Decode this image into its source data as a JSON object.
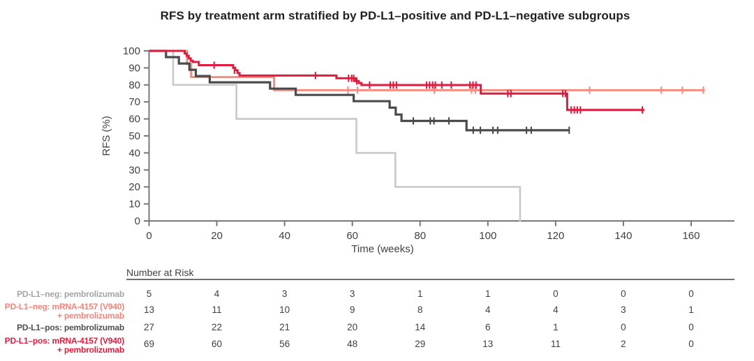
{
  "title": "RFS by treatment arm stratified by PD-L1–positive and PD-L1–negative subgroups",
  "colors": {
    "axis": "#77787B",
    "tick_text": "#414042",
    "title_text": "#231F20",
    "rule": "#6D6E71"
  },
  "chart_data": {
    "type": "line",
    "subtype": "kaplan-meier-step",
    "title": "RFS by treatment arm stratified by PD-L1–positive and PD-L1–negative subgroups",
    "xlabel": "Time (weeks)",
    "ylabel": "RFS (%)",
    "xlim": [
      0,
      160
    ],
    "ylim": [
      0,
      100
    ],
    "xticks": [
      0,
      20,
      40,
      60,
      80,
      100,
      120,
      140,
      160
    ],
    "yticks": [
      0,
      10,
      20,
      30,
      40,
      50,
      60,
      70,
      80,
      90,
      100
    ],
    "grid": false,
    "legend_position": "none",
    "series": [
      {
        "key": "pdl1-neg-pembrolizumab",
        "name": "PD-L1–neg: pembrolizumab",
        "label_lines": [
          "PD-L1–neg: pembrolizumab"
        ],
        "color": "#C8C9CB",
        "label_color": "#A2A4A7",
        "line_width": 2.6,
        "steps": [
          [
            0,
            100
          ],
          [
            7.1,
            80
          ],
          [
            25.8,
            60
          ],
          [
            61.2,
            40
          ],
          [
            72.7,
            20
          ],
          [
            109.5,
            0
          ]
        ],
        "censors": [],
        "end": 109.7,
        "at_risk": [
          5,
          4,
          3,
          3,
          1,
          1,
          0,
          0,
          0
        ]
      },
      {
        "key": "pdl1-neg-mrna4157-pembrolizumab",
        "name": "PD-L1–neg: mRNA-4157 (V940) + pembrolizumab",
        "label_lines": [
          "PD-L1–neg: mRNA-4157 (V940)",
          "+ pembrolizumab"
        ],
        "color": "#F58D7F",
        "label_color": "#F4837A",
        "line_width": 3,
        "steps": [
          [
            0,
            100
          ],
          [
            11.2,
            92.3
          ],
          [
            12.4,
            84.6
          ],
          [
            36.9,
            76.9
          ]
        ],
        "censors": [
          [
            58.7,
            76.9
          ],
          [
            61.5,
            76.9
          ],
          [
            84.2,
            76.9
          ],
          [
            95.2,
            76.9
          ],
          [
            96.3,
            76.9
          ],
          [
            130,
            76.9
          ],
          [
            151.2,
            76.9
          ],
          [
            157.4,
            76.9
          ],
          [
            163.6,
            76.9
          ]
        ],
        "end": 164,
        "at_risk": [
          13,
          11,
          10,
          9,
          8,
          4,
          4,
          3,
          1
        ]
      },
      {
        "key": "pdl1-pos-pembrolizumab",
        "name": "PD-L1–pos: pembrolizumab",
        "label_lines": [
          "PD-L1–pos: pembrolizumab"
        ],
        "color": "#4A4B4D",
        "label_color": "#4D4E50",
        "line_width": 3.2,
        "steps": [
          [
            0,
            100
          ],
          [
            5,
            96.3
          ],
          [
            8.8,
            92.6
          ],
          [
            11.9,
            88.9
          ],
          [
            13.8,
            85.2
          ],
          [
            17.9,
            81.5
          ],
          [
            35.7,
            77.8
          ],
          [
            43.3,
            74.1
          ],
          [
            60.4,
            70.4
          ],
          [
            71,
            66.6
          ],
          [
            72.8,
            62.6
          ],
          [
            74.5,
            58.8
          ],
          [
            93.7,
            53.3
          ]
        ],
        "censors": [
          [
            78,
            58.8
          ],
          [
            83,
            58.8
          ],
          [
            84.1,
            58.8
          ],
          [
            88.5,
            58.8
          ],
          [
            95.7,
            53.3
          ],
          [
            97.8,
            53.3
          ],
          [
            101.5,
            53.3
          ],
          [
            102.9,
            53.3
          ],
          [
            111.4,
            53.3
          ],
          [
            112.8,
            53.3
          ],
          [
            124,
            53.3
          ]
        ],
        "end": 124.1,
        "at_risk": [
          27,
          22,
          21,
          20,
          14,
          6,
          1,
          0,
          0
        ]
      },
      {
        "key": "pdl1-pos-mrna4157-pembrolizumab",
        "name": "PD-L1–pos: mRNA-4157 (V940) + pembrolizumab",
        "label_lines": [
          "PD-L1–pos: mRNA-4157 (V940)",
          "+ pembrolizumab"
        ],
        "color": "#DF1C3F",
        "label_color": "#E31A3C",
        "line_width": 3,
        "steps": [
          [
            0,
            100
          ],
          [
            10.5,
            98.5
          ],
          [
            11.1,
            97.1
          ],
          [
            11.7,
            95.6
          ],
          [
            12.3,
            94.2
          ],
          [
            12.9,
            93.5
          ],
          [
            14.7,
            91.6
          ],
          [
            24.8,
            90.1
          ],
          [
            25.4,
            88.6
          ],
          [
            26.1,
            87
          ],
          [
            26.7,
            85.5
          ],
          [
            55.3,
            83.9
          ],
          [
            60.8,
            82.3
          ],
          [
            61.9,
            81.1
          ],
          [
            62.7,
            79.9
          ],
          [
            97.9,
            74.9
          ],
          [
            123.4,
            65.3
          ]
        ],
        "censors": [
          [
            19.2,
            91.6
          ],
          [
            25.2,
            88.6
          ],
          [
            49.1,
            85.5
          ],
          [
            58.9,
            83.9
          ],
          [
            59.8,
            83.9
          ],
          [
            60.4,
            83.9
          ],
          [
            61.3,
            82.3
          ],
          [
            65.1,
            79.9
          ],
          [
            71.2,
            79.9
          ],
          [
            72.1,
            79.9
          ],
          [
            73,
            79.9
          ],
          [
            81.9,
            79.9
          ],
          [
            82.8,
            79.9
          ],
          [
            83.7,
            79.9
          ],
          [
            84.5,
            79.9
          ],
          [
            86.4,
            79.9
          ],
          [
            89.2,
            79.9
          ],
          [
            94.7,
            79.9
          ],
          [
            95.6,
            79.9
          ],
          [
            96.5,
            79.9
          ],
          [
            105.9,
            74.9
          ],
          [
            106.8,
            74.9
          ],
          [
            122.1,
            74.9
          ],
          [
            122.9,
            74.9
          ],
          [
            124.6,
            65.3
          ],
          [
            125.5,
            65.3
          ],
          [
            126.4,
            65.3
          ],
          [
            127.3,
            65.3
          ],
          [
            145.6,
            65.3
          ]
        ],
        "end": 146.2,
        "at_risk": [
          69,
          60,
          56,
          48,
          29,
          13,
          11,
          2,
          0
        ]
      }
    ]
  },
  "number_at_risk": {
    "header": "Number at Risk",
    "times": [
      0,
      20,
      40,
      60,
      80,
      100,
      120,
      140,
      160
    ]
  }
}
